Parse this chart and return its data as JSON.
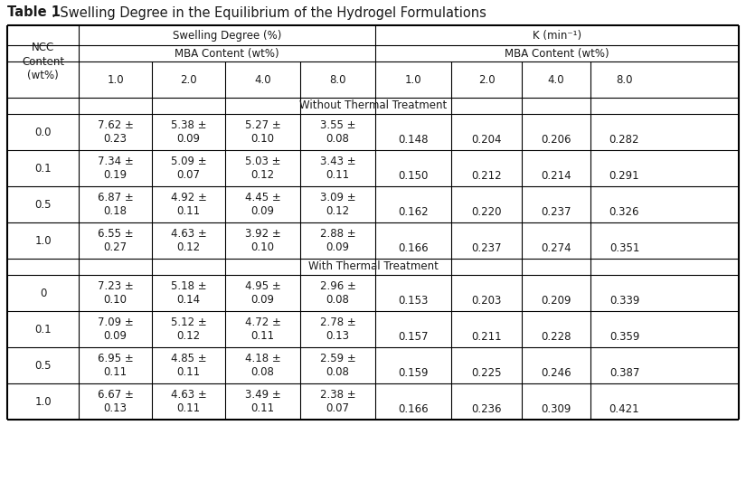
{
  "title_bold": "Table 1",
  "title_rest": ". Swelling Degree in the Equilibrium of the Hydrogel Formulations",
  "section_without": "Without Thermal Treatment",
  "section_with": "With Thermal Treatment",
  "rows_without": [
    [
      "0.0",
      "7.62 ±\n0.23",
      "5.38 ±\n0.09",
      "5.27 ±\n0.10",
      "3.55 ±\n0.08",
      "0.148",
      "0.204",
      "0.206",
      "0.282"
    ],
    [
      "0.1",
      "7.34 ±\n0.19",
      "5.09 ±\n0.07",
      "5.03 ±\n0.12",
      "3.43 ±\n0.11",
      "0.150",
      "0.212",
      "0.214",
      "0.291"
    ],
    [
      "0.5",
      "6.87 ±\n0.18",
      "4.92 ±\n0.11",
      "4.45 ±\n0.09",
      "3.09 ±\n0.12",
      "0.162",
      "0.220",
      "0.237",
      "0.326"
    ],
    [
      "1.0",
      "6.55 ±\n0.27",
      "4.63 ±\n0.12",
      "3.92 ±\n0.10",
      "2.88 ±\n0.09",
      "0.166",
      "0.237",
      "0.274",
      "0.351"
    ]
  ],
  "rows_with": [
    [
      "0",
      "7.23 ±\n0.10",
      "5.18 ±\n0.14",
      "4.95 ±\n0.09",
      "2.96 ±\n0.08",
      "0.153",
      "0.203",
      "0.209",
      "0.339"
    ],
    [
      "0.1",
      "7.09 ±\n0.09",
      "5.12 ±\n0.12",
      "4.72 ±\n0.11",
      "2.78 ±\n0.13",
      "0.157",
      "0.211",
      "0.228",
      "0.359"
    ],
    [
      "0.5",
      "6.95 ±\n0.11",
      "4.85 ±\n0.11",
      "4.18 ±\n0.08",
      "2.59 ±\n0.08",
      "0.159",
      "0.225",
      "0.246",
      "0.387"
    ],
    [
      "1.0",
      "6.67 ±\n0.13",
      "4.63 ±\n0.11",
      "3.49 ±\n0.11",
      "2.38 ±\n0.07",
      "0.166",
      "0.236",
      "0.309",
      "0.421"
    ]
  ],
  "bg_color": "#ffffff",
  "text_color": "#1a1a1a",
  "font_size": 8.5,
  "title_font_size": 10.5,
  "font_family": "DejaVu Sans"
}
